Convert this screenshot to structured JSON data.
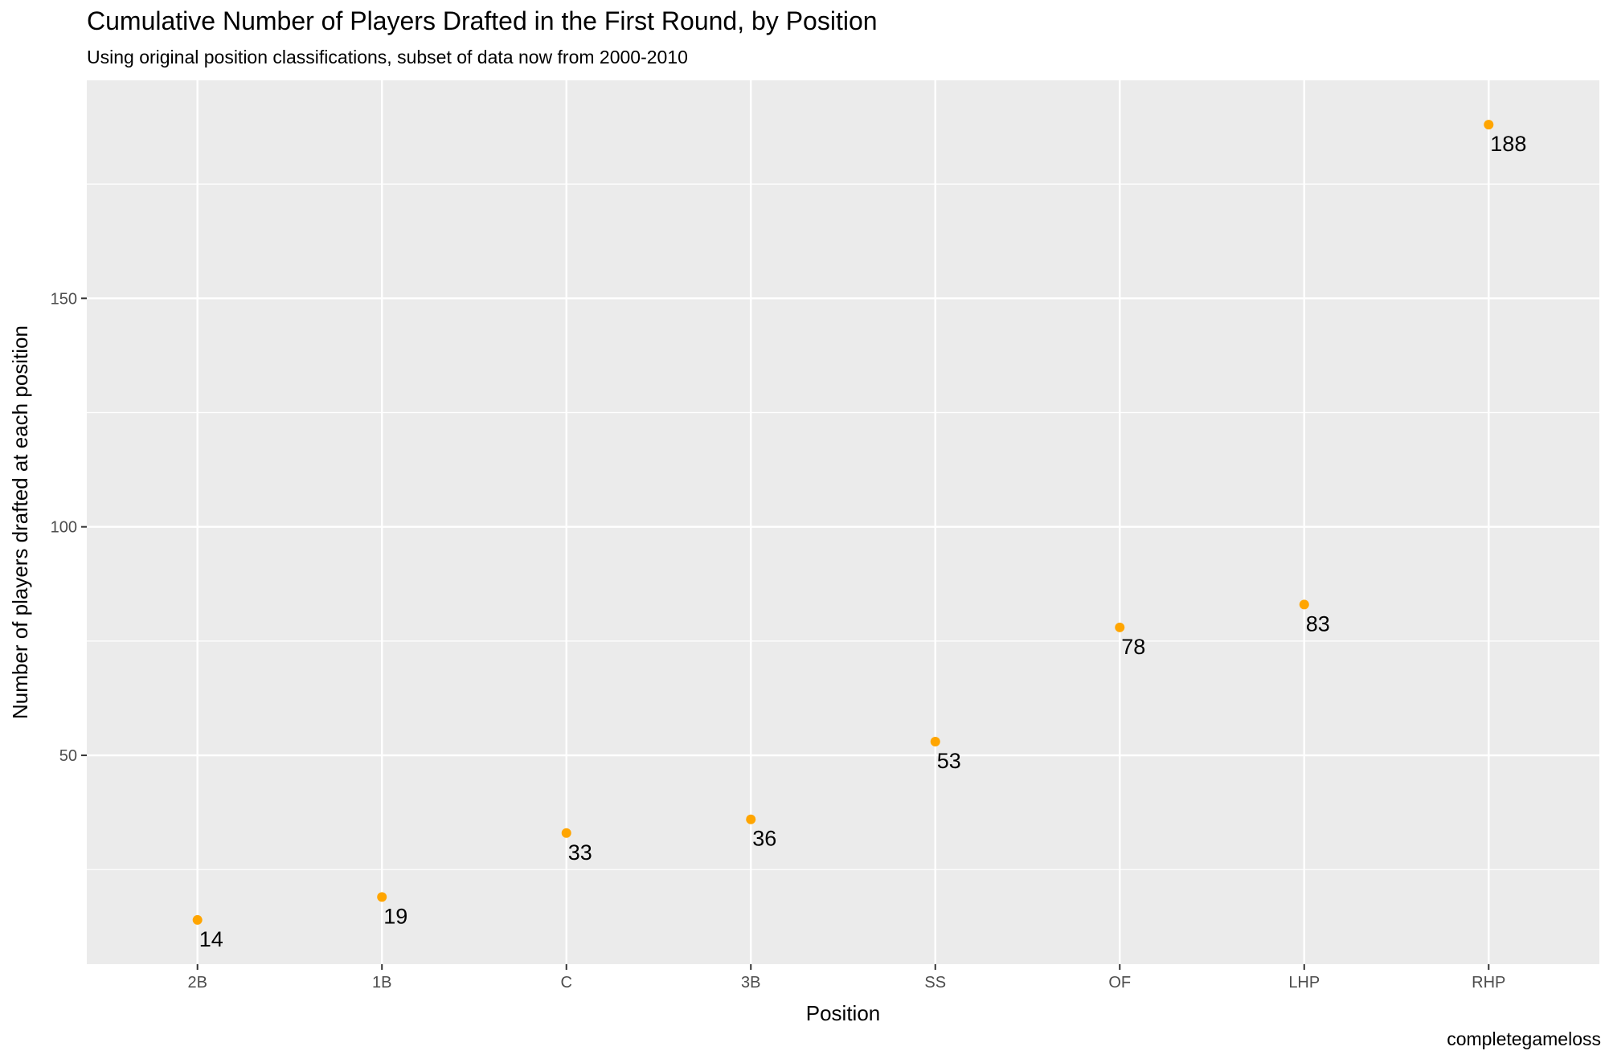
{
  "chart_data": {
    "type": "scatter",
    "title": "Cumulative Number of Players Drafted in the First Round, by Position",
    "subtitle": "Using original position classifications, subset of data now from 2000-2010",
    "caption": "completegameloss",
    "xlabel": "Position",
    "ylabel": "Number of players drafted at each position",
    "categories": [
      "2B",
      "1B",
      "C",
      "3B",
      "SS",
      "OF",
      "LHP",
      "RHP"
    ],
    "values": [
      14,
      19,
      33,
      36,
      53,
      78,
      83,
      188
    ],
    "data_labels": [
      "14",
      "19",
      "33",
      "36",
      "53",
      "78",
      "83",
      "188"
    ],
    "ylim": [
      4.3,
      197.7
    ],
    "yticks": [
      50,
      100,
      150
    ],
    "ytick_labels": [
      "50",
      "100",
      "150"
    ],
    "grid": true,
    "point_color": "#FFA500",
    "panel_color": "#EBEBEB",
    "grid_color": "#FFFFFF"
  }
}
